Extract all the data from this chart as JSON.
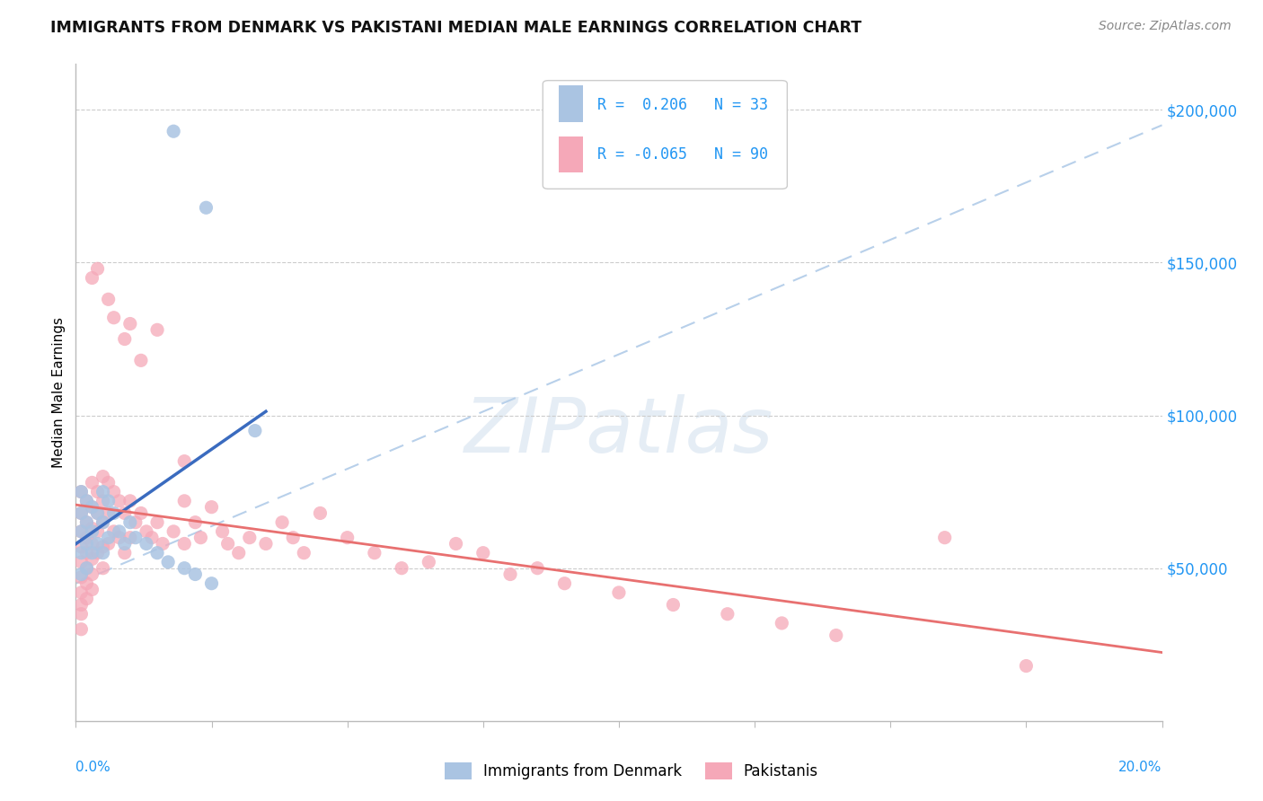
{
  "title": "IMMIGRANTS FROM DENMARK VS PAKISTANI MEDIAN MALE EARNINGS CORRELATION CHART",
  "source": "Source: ZipAtlas.com",
  "ylabel": "Median Male Earnings",
  "yticks": [
    50000,
    100000,
    150000,
    200000
  ],
  "ytick_labels": [
    "$50,000",
    "$100,000",
    "$150,000",
    "$200,000"
  ],
  "xlim": [
    0.0,
    0.2
  ],
  "ylim": [
    0,
    215000
  ],
  "watermark": "ZIPatlas",
  "denmark_R": 0.206,
  "denmark_N": 33,
  "pakistan_R": -0.065,
  "pakistan_N": 90,
  "denmark_color": "#aac4e2",
  "pakistan_color": "#f5a8b8",
  "denmark_line_color": "#3a6bbf",
  "pakistan_line_color": "#e87070",
  "dashed_line_color": "#b8d0ea",
  "dk_x": [
    0.001,
    0.001,
    0.001,
    0.001,
    0.001,
    0.002,
    0.002,
    0.002,
    0.002,
    0.003,
    0.003,
    0.003,
    0.004,
    0.004,
    0.005,
    0.005,
    0.005,
    0.006,
    0.006,
    0.007,
    0.008,
    0.009,
    0.01,
    0.011,
    0.013,
    0.015,
    0.017,
    0.02,
    0.022,
    0.025,
    0.018,
    0.024,
    0.033
  ],
  "dk_y": [
    75000,
    68000,
    62000,
    55000,
    48000,
    72000,
    65000,
    58000,
    50000,
    70000,
    62000,
    55000,
    68000,
    58000,
    75000,
    65000,
    55000,
    72000,
    60000,
    68000,
    62000,
    58000,
    65000,
    60000,
    58000,
    55000,
    52000,
    50000,
    48000,
    45000,
    193000,
    168000,
    95000
  ],
  "pk_x": [
    0.001,
    0.001,
    0.001,
    0.001,
    0.001,
    0.001,
    0.001,
    0.001,
    0.001,
    0.001,
    0.002,
    0.002,
    0.002,
    0.002,
    0.002,
    0.002,
    0.002,
    0.003,
    0.003,
    0.003,
    0.003,
    0.003,
    0.003,
    0.003,
    0.004,
    0.004,
    0.004,
    0.004,
    0.005,
    0.005,
    0.005,
    0.005,
    0.005,
    0.006,
    0.006,
    0.006,
    0.007,
    0.007,
    0.008,
    0.008,
    0.009,
    0.009,
    0.01,
    0.01,
    0.011,
    0.012,
    0.013,
    0.014,
    0.015,
    0.016,
    0.018,
    0.02,
    0.02,
    0.022,
    0.023,
    0.025,
    0.027,
    0.028,
    0.03,
    0.032,
    0.035,
    0.038,
    0.04,
    0.042,
    0.045,
    0.05,
    0.055,
    0.06,
    0.065,
    0.07,
    0.075,
    0.08,
    0.085,
    0.09,
    0.1,
    0.11,
    0.12,
    0.13,
    0.14,
    0.16,
    0.004,
    0.007,
    0.01,
    0.015,
    0.02,
    0.003,
    0.006,
    0.009,
    0.012,
    0.175
  ],
  "pk_y": [
    75000,
    68000,
    62000,
    57000,
    52000,
    47000,
    42000,
    38000,
    35000,
    30000,
    72000,
    65000,
    60000,
    55000,
    50000,
    45000,
    40000,
    78000,
    70000,
    63000,
    58000,
    53000,
    48000,
    43000,
    75000,
    68000,
    62000,
    55000,
    80000,
    72000,
    65000,
    57000,
    50000,
    78000,
    68000,
    58000,
    75000,
    62000,
    72000,
    60000,
    68000,
    55000,
    72000,
    60000,
    65000,
    68000,
    62000,
    60000,
    65000,
    58000,
    62000,
    72000,
    58000,
    65000,
    60000,
    70000,
    62000,
    58000,
    55000,
    60000,
    58000,
    65000,
    60000,
    55000,
    68000,
    60000,
    55000,
    50000,
    52000,
    58000,
    55000,
    48000,
    50000,
    45000,
    42000,
    38000,
    35000,
    32000,
    28000,
    60000,
    148000,
    132000,
    130000,
    128000,
    85000,
    145000,
    138000,
    125000,
    118000,
    18000
  ]
}
